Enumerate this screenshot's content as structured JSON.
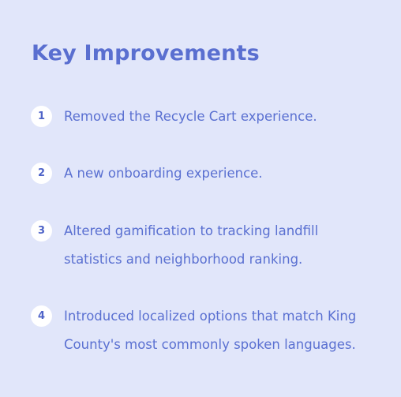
{
  "title": "Key Improvements",
  "items": [
    {
      "number": "1",
      "text": "Removed the Recycle Cart experience."
    },
    {
      "number": "2",
      "text": "A new onboarding experience."
    },
    {
      "number": "3",
      "text": "Altered gamification to tracking landfill statistics and neighborhood ranking."
    },
    {
      "number": "4",
      "text": "Introduced localized options that match King County's most commonly spoken languages."
    }
  ],
  "colors": {
    "background": "#e1e6fa",
    "accent": "#5a6fd0",
    "badge_background": "#ffffff"
  }
}
